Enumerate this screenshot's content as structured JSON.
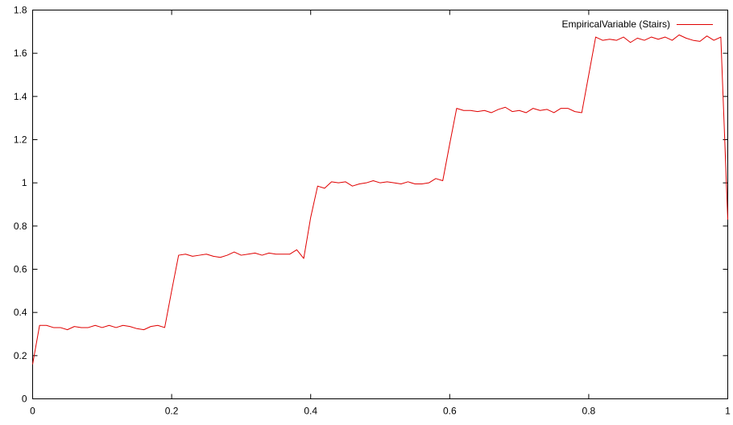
{
  "chart_data": {
    "type": "line",
    "title": "",
    "xlabel": "",
    "ylabel": "",
    "xlim": [
      0,
      1
    ],
    "ylim": [
      0,
      1.8
    ],
    "grid": false,
    "legend_position": "top-right",
    "x_ticks": [
      0,
      0.2,
      0.4,
      0.6,
      0.8,
      1
    ],
    "x_tick_labels": [
      "0",
      "0.2",
      "0.4",
      "0.6",
      "0.8",
      "1"
    ],
    "y_ticks": [
      0,
      0.2,
      0.4,
      0.6,
      0.8,
      1,
      1.2,
      1.4,
      1.6,
      1.8
    ],
    "y_tick_labels": [
      "0",
      "0.2",
      "0.4",
      "0.6",
      "0.8",
      "1",
      "1.2",
      "1.4",
      "1.6",
      "1.8"
    ],
    "series": [
      {
        "name": "EmpiricalVariable (Stairs)",
        "color": "#e00000",
        "x": [
          0,
          0.01,
          0.02,
          0.03,
          0.04,
          0.05,
          0.06,
          0.07,
          0.08,
          0.09,
          0.1,
          0.11,
          0.12,
          0.13,
          0.14,
          0.15,
          0.16,
          0.17,
          0.18,
          0.19,
          0.2,
          0.21,
          0.22,
          0.23,
          0.24,
          0.25,
          0.26,
          0.27,
          0.28,
          0.29,
          0.3,
          0.31,
          0.32,
          0.33,
          0.34,
          0.35,
          0.36,
          0.37,
          0.38,
          0.39,
          0.4,
          0.41,
          0.42,
          0.43,
          0.44,
          0.45,
          0.46,
          0.47,
          0.48,
          0.49,
          0.5,
          0.51,
          0.52,
          0.53,
          0.54,
          0.55,
          0.56,
          0.57,
          0.58,
          0.59,
          0.6,
          0.61,
          0.62,
          0.63,
          0.64,
          0.65,
          0.66,
          0.67,
          0.68,
          0.69,
          0.7,
          0.71,
          0.72,
          0.73,
          0.74,
          0.75,
          0.76,
          0.77,
          0.78,
          0.79,
          0.8,
          0.81,
          0.82,
          0.83,
          0.84,
          0.85,
          0.86,
          0.87,
          0.88,
          0.89,
          0.9,
          0.91,
          0.92,
          0.93,
          0.94,
          0.95,
          0.96,
          0.97,
          0.98,
          0.99,
          1.0
        ],
        "y": [
          0.16,
          0.34,
          0.34,
          0.33,
          0.33,
          0.32,
          0.335,
          0.33,
          0.33,
          0.34,
          0.33,
          0.34,
          0.33,
          0.34,
          0.335,
          0.325,
          0.32,
          0.335,
          0.34,
          0.33,
          0.5,
          0.665,
          0.67,
          0.66,
          0.665,
          0.67,
          0.66,
          0.655,
          0.665,
          0.68,
          0.665,
          0.67,
          0.675,
          0.665,
          0.675,
          0.67,
          0.67,
          0.67,
          0.69,
          0.65,
          0.84,
          0.985,
          0.975,
          1.005,
          1.0,
          1.005,
          0.985,
          0.995,
          1.0,
          1.01,
          1.0,
          1.005,
          1.0,
          0.995,
          1.005,
          0.995,
          0.995,
          1.0,
          1.02,
          1.01,
          1.18,
          1.345,
          1.335,
          1.335,
          1.33,
          1.335,
          1.325,
          1.34,
          1.35,
          1.33,
          1.335,
          1.325,
          1.345,
          1.335,
          1.34,
          1.325,
          1.345,
          1.345,
          1.33,
          1.325,
          1.5,
          1.675,
          1.66,
          1.665,
          1.66,
          1.675,
          1.65,
          1.67,
          1.66,
          1.675,
          1.665,
          1.675,
          1.66,
          1.685,
          1.67,
          1.66,
          1.655,
          1.68,
          1.66,
          1.675,
          0.83
        ]
      }
    ]
  }
}
